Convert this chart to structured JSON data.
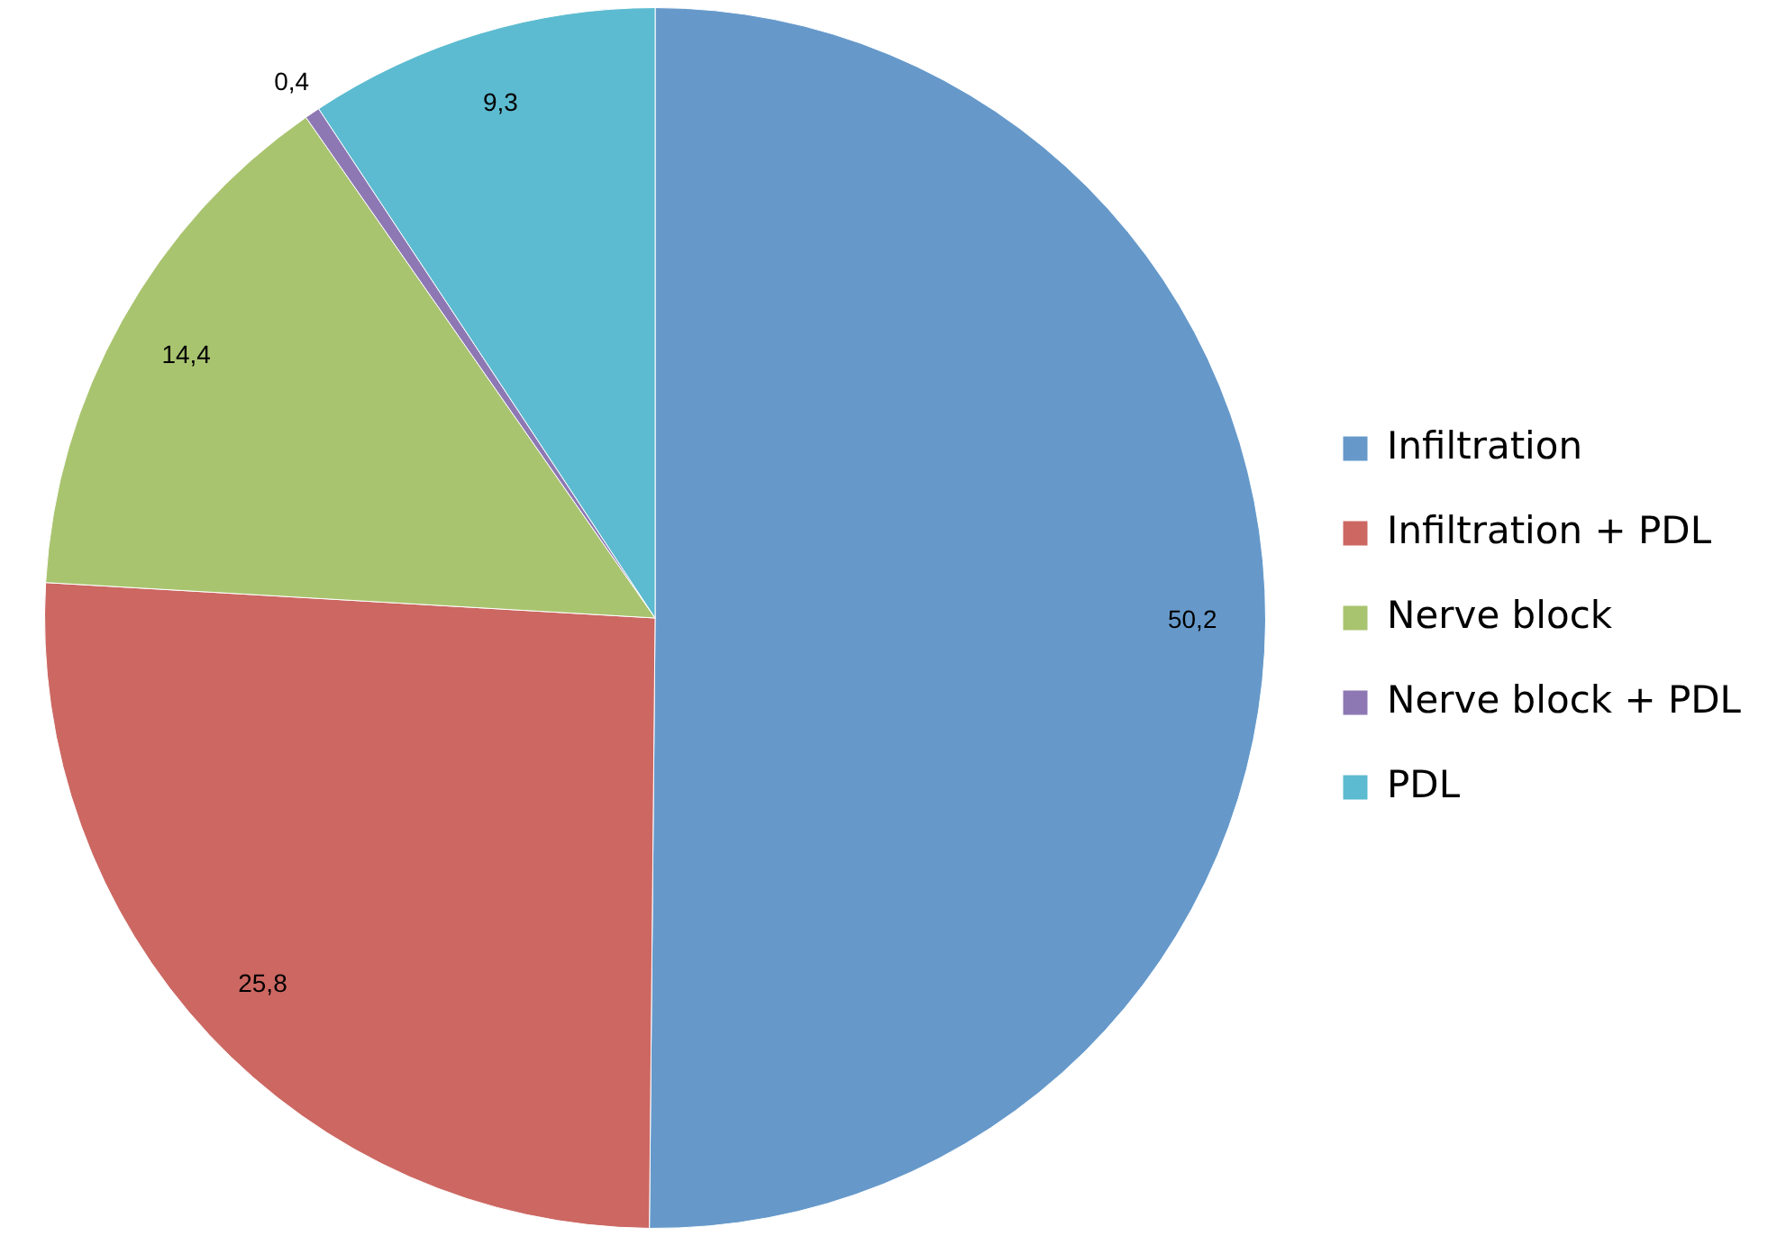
{
  "chart_data": {
    "type": "pie",
    "categories": [
      "Infiltration",
      "Infiltration + PDL",
      "Nerve block",
      "Nerve block + PDL",
      "PDL"
    ],
    "values": [
      50.2,
      25.8,
      14.4,
      0.4,
      9.3
    ],
    "colors": [
      "#6699ca",
      "#cc6762",
      "#a9c46f",
      "#8e78b4",
      "#5cbbd0"
    ],
    "value_labels": [
      "50,2",
      "25,8",
      "14,4",
      "0,4",
      "9,3"
    ],
    "legend": "right"
  }
}
